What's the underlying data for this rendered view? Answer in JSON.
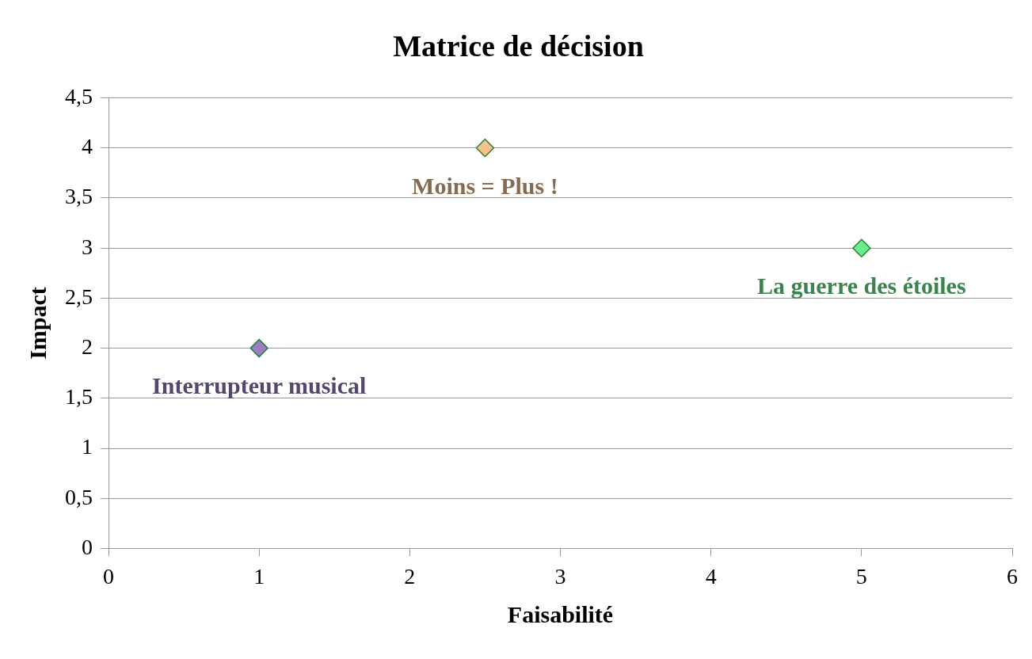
{
  "chart_data": {
    "type": "scatter",
    "title": "Matrice de décision",
    "xlabel": "Faisabilité",
    "ylabel": "Impact",
    "series": [
      {
        "name": "Interrupteur musical",
        "color": "#9b7fc4",
        "x": [
          1
        ],
        "values": [
          2
        ]
      },
      {
        "name": "Moins = Plus !",
        "color": "#f6c08f",
        "x": [
          2.5
        ],
        "values": [
          4
        ]
      },
      {
        "name": "La guerre des étoiles",
        "color": "#66f08a",
        "x": [
          5
        ],
        "values": [
          3
        ]
      }
    ],
    "xlim": [
      0,
      6
    ],
    "xticks": [
      0,
      1,
      2,
      3,
      4,
      5,
      6
    ],
    "ylim": [
      0,
      4.5
    ],
    "yticks": [
      0,
      {
        "value": 0.5,
        "label": "0,5"
      },
      1,
      {
        "value": 1.5,
        "label": "1,5"
      },
      2,
      {
        "value": 2.5,
        "label": "2,5"
      },
      3,
      {
        "value": 3.5,
        "label": "3,5"
      },
      4,
      {
        "value": 4.5,
        "label": "4,5"
      }
    ],
    "grid": "y",
    "legend": false,
    "marker": "diamond"
  }
}
